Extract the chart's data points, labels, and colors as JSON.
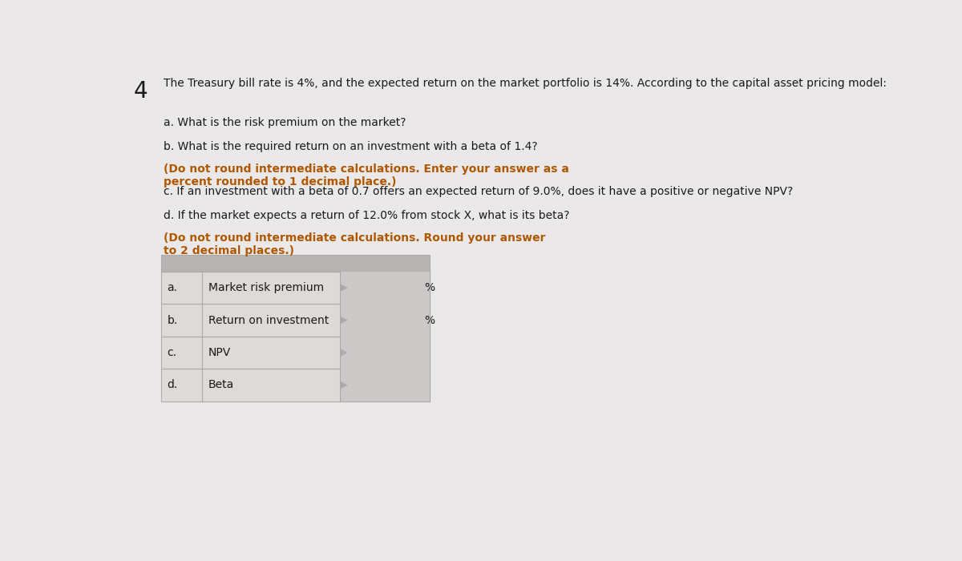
{
  "problem_number": "4",
  "header_text": "The Treasury bill rate is 4%, and the expected return on the market portfolio is 14%. According to the capital asset pricing model:",
  "q_a_normal": "a. What is the risk premium on the market?",
  "q_b_normal": "b. What is the required return on an investment with a beta of 1.4? ",
  "q_b_bold": "(Do not round intermediate calculations. Enter your answer as a percent rounded to 1 decimal place.)",
  "q_c_normal": "c. If an investment with a beta of 0.7 offers an expected return of 9.0%, does it have a positive or negative NPV?",
  "q_d_normal": "d. If the market expects a return of 12.0% from stock X, what is its beta? ",
  "q_d_bold": "(Do not round intermediate calculations. Round your answer to 2 decimal places.)",
  "table_rows": [
    {
      "label": "a.",
      "description": "Market risk premium",
      "has_percent": true
    },
    {
      "label": "b.",
      "description": "Return on investment",
      "has_percent": true
    },
    {
      "label": "c.",
      "description": "NPV",
      "has_percent": false
    },
    {
      "label": "d.",
      "description": "Beta",
      "has_percent": false
    }
  ],
  "bg_color": "#eae8e8",
  "table_header_color": "#b8b4b4",
  "table_row_color": "#dedad8",
  "table_input_color": "#ccc8c8",
  "table_border_color": "#aaaaaa",
  "text_color": "#1a1a1a",
  "bold_text_color": "#b05800",
  "font_size": 10.0,
  "number_font_size": 20
}
